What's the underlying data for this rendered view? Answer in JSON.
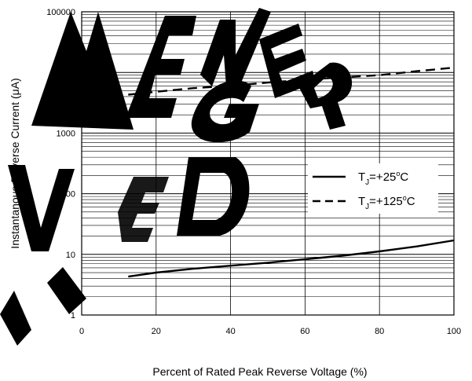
{
  "chart_data": {
    "type": "line",
    "title": "",
    "xlabel": "Percent of Rated Peak Reverse Voltage (%)",
    "ylabel": "Instantanous Reverse Current (μA)",
    "xlim": [
      0,
      100
    ],
    "ylim": [
      1,
      100000
    ],
    "y_scale": "log",
    "grid": true,
    "legend_position": "right",
    "x_ticks": [
      0,
      20,
      40,
      60,
      80,
      100
    ],
    "x_tick_labels": [
      "0",
      "20",
      "40",
      "60",
      "80",
      "100"
    ],
    "y_ticks": [
      1,
      10,
      100,
      1000,
      10000,
      100000
    ],
    "y_tick_labels": [
      "1",
      "10",
      "100",
      "1000",
      "10000",
      "100000"
    ],
    "series": [
      {
        "name": "TJ=+25°C",
        "name_main": "T",
        "name_sub": "J",
        "name_rest": "=+25",
        "name_sup": "o",
        "name_unit": "C",
        "line_style": "solid",
        "color": "#000000",
        "x": [
          12.5,
          20,
          30,
          40,
          50,
          60,
          70,
          80,
          90,
          100
        ],
        "y": [
          4.3,
          5.0,
          5.8,
          6.5,
          7.3,
          8.3,
          9.5,
          11.2,
          13.5,
          17
        ]
      },
      {
        "name": "TJ=+125°C",
        "name_main": "T",
        "name_sub": "J",
        "name_rest": "=+125",
        "name_sup": "o",
        "name_unit": "C",
        "line_style": "dashed",
        "color": "#000000",
        "x": [
          12.5,
          20,
          30,
          40,
          50,
          60,
          70,
          80,
          90,
          100
        ],
        "y": [
          4300,
          4800,
          5500,
          6000,
          6800,
          7600,
          8300,
          9000,
          10500,
          12000
        ]
      }
    ]
  },
  "watermark": {
    "line1": "NEW",
    "line2": "DESIGN",
    "line3": "W D",
    "color": "#000000"
  }
}
